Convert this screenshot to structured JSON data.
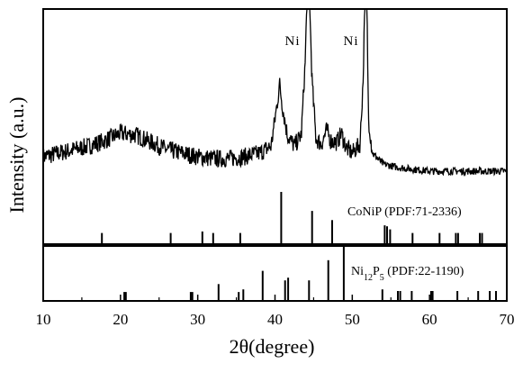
{
  "chart_data": {
    "type": "line",
    "xlabel": "2θ(degree)",
    "ylabel": "Intensity (a.u.)",
    "xlim": [
      10,
      70
    ],
    "xticks": [
      10,
      20,
      30,
      40,
      50,
      60,
      70
    ],
    "grid": false,
    "legend": "none",
    "annotations": [
      {
        "text": "Ni",
        "x": 44.3
      },
      {
        "text": "Ni",
        "x": 51.7
      }
    ],
    "series": [
      {
        "panel": "measured",
        "points": [
          [
            10,
            0.18
          ],
          [
            12,
            0.2
          ],
          [
            14,
            0.22
          ],
          [
            16,
            0.24
          ],
          [
            18,
            0.27
          ],
          [
            20,
            0.31
          ],
          [
            22,
            0.3
          ],
          [
            24,
            0.26
          ],
          [
            26,
            0.22
          ],
          [
            28,
            0.2
          ],
          [
            30,
            0.18
          ],
          [
            32,
            0.17
          ],
          [
            34,
            0.17
          ],
          [
            36,
            0.18
          ],
          [
            38,
            0.2
          ],
          [
            39.5,
            0.24
          ],
          [
            40.2,
            0.45
          ],
          [
            40.6,
            0.58
          ],
          [
            41.0,
            0.45
          ],
          [
            41.6,
            0.3
          ],
          [
            42.5,
            0.24
          ],
          [
            43.4,
            0.3
          ],
          [
            43.9,
            0.7
          ],
          [
            44.1,
            1.0
          ],
          [
            44.5,
            1.0
          ],
          [
            44.8,
            0.6
          ],
          [
            45.3,
            0.28
          ],
          [
            46.0,
            0.25
          ],
          [
            46.7,
            0.33
          ],
          [
            47.2,
            0.27
          ],
          [
            48.0,
            0.26
          ],
          [
            48.6,
            0.31
          ],
          [
            49.2,
            0.23
          ],
          [
            50.0,
            0.2
          ],
          [
            51.0,
            0.25
          ],
          [
            51.4,
            0.6
          ],
          [
            51.6,
            1.0
          ],
          [
            51.9,
            1.0
          ],
          [
            52.1,
            0.4
          ],
          [
            52.6,
            0.2
          ],
          [
            54,
            0.14
          ],
          [
            56,
            0.12
          ],
          [
            58,
            0.11
          ],
          [
            60,
            0.1
          ],
          [
            62,
            0.1
          ],
          [
            64,
            0.1
          ],
          [
            66,
            0.1
          ],
          [
            68,
            0.1
          ],
          [
            70,
            0.1
          ]
        ]
      },
      {
        "panel": "reference-1",
        "name": "CoNiP (PDF:71-2336)",
        "sticks": [
          [
            17.6,
            0.2
          ],
          [
            26.5,
            0.2
          ],
          [
            30.6,
            0.23
          ],
          [
            32.0,
            0.2
          ],
          [
            35.5,
            0.2
          ],
          [
            40.8,
            1.0
          ],
          [
            44.8,
            0.63
          ],
          [
            47.4,
            0.45
          ],
          [
            54.2,
            0.35
          ],
          [
            54.5,
            0.33
          ],
          [
            54.9,
            0.27
          ],
          [
            57.8,
            0.2
          ],
          [
            61.3,
            0.2
          ],
          [
            63.4,
            0.2
          ],
          [
            63.7,
            0.2
          ],
          [
            66.5,
            0.2
          ],
          [
            66.8,
            0.2
          ]
        ]
      },
      {
        "panel": "reference-2",
        "name": "Ni₁₂P₅ (PDF:22-1190)",
        "sticks": [
          [
            20.5,
            0.15
          ],
          [
            20.7,
            0.15
          ],
          [
            29.1,
            0.15
          ],
          [
            29.3,
            0.15
          ],
          [
            32.7,
            0.3
          ],
          [
            35.3,
            0.15
          ],
          [
            35.9,
            0.2
          ],
          [
            38.4,
            0.55
          ],
          [
            41.3,
            0.37
          ],
          [
            41.7,
            0.42
          ],
          [
            44.4,
            0.37
          ],
          [
            46.9,
            0.75
          ],
          [
            48.9,
            1.0
          ],
          [
            53.9,
            0.2
          ],
          [
            55.9,
            0.17
          ],
          [
            56.2,
            0.17
          ],
          [
            57.7,
            0.17
          ],
          [
            60.2,
            0.17
          ],
          [
            60.4,
            0.17
          ],
          [
            63.6,
            0.17
          ],
          [
            66.3,
            0.17
          ],
          [
            67.8,
            0.17
          ],
          [
            68.6,
            0.17
          ]
        ]
      }
    ]
  },
  "labels": {
    "xlabel": "2θ(degree)",
    "ylabel": "Intensity (a.u.)",
    "ni_peak_1": "Ni",
    "ni_peak_2": "Ni",
    "ref1": "CoNiP (PDF:71-2336)",
    "ref2_pdf": " (PDF:22-1190)",
    "ref2_ni": "Ni",
    "ref2_ni_sub": "12",
    "ref2_p": "P",
    "ref2_p_sub": "5"
  }
}
